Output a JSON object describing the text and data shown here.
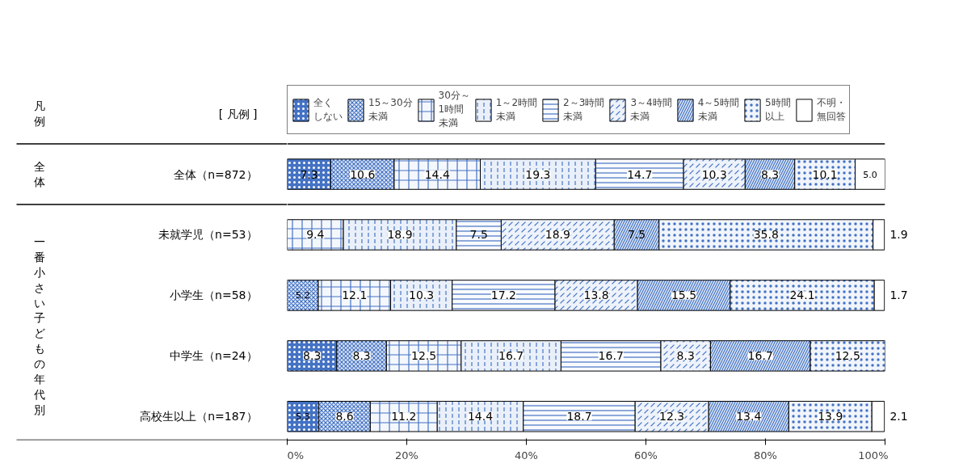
{
  "chart_data": {
    "type": "bar",
    "orientation": "horizontal",
    "stacked": true,
    "legend": "top",
    "grid": false,
    "categories": [
      "全体（n=872）",
      "未就学児（n=53）",
      "小学生（n=58）",
      "中学生（n=24）",
      "高校生以上（n=187）"
    ],
    "xlim": [
      0,
      100
    ],
    "xticks": [
      {
        "value": 0,
        "label": "0%"
      },
      {
        "value": 20,
        "label": "20%"
      },
      {
        "value": 40,
        "label": "40%"
      },
      {
        "value": 60,
        "label": "60%"
      },
      {
        "value": 80,
        "label": "80%"
      },
      {
        "value": 100,
        "label": "100%"
      }
    ],
    "series": [
      {
        "name": "全くしない",
        "color": "#4472c4",
        "values": [
          7.3,
          0,
          0,
          8.3,
          5.3
        ],
        "value_labels": [
          "7.3",
          null,
          null,
          "8.3",
          "5.3"
        ]
      },
      {
        "name": "15～30分未満",
        "color": "#e3ebf7",
        "values": [
          10.6,
          0,
          5.2,
          8.3,
          8.6
        ],
        "value_labels": [
          "10.6",
          null,
          "5.2",
          "8.3",
          "8.6"
        ]
      },
      {
        "name": "30分～1時間未満",
        "color": "#f4f7fc",
        "values": [
          14.4,
          9.4,
          12.1,
          12.5,
          11.2
        ],
        "value_labels": [
          "14.4",
          "9.4",
          "12.1",
          "12.5",
          "11.2"
        ]
      },
      {
        "name": "1～2時間未満",
        "color": "#eaf0f9",
        "values": [
          19.3,
          18.9,
          10.3,
          16.7,
          14.4
        ],
        "value_labels": [
          "19.3",
          "18.9",
          "10.3",
          "16.7",
          "14.4"
        ]
      },
      {
        "name": "2～3時間未満",
        "color": "#f8fafd",
        "values": [
          14.7,
          7.5,
          17.2,
          16.7,
          18.7
        ],
        "value_labels": [
          "14.7",
          "7.5",
          "17.2",
          "16.7",
          "18.7"
        ]
      },
      {
        "name": "3～4時間未満",
        "color": "#eef3fb",
        "values": [
          10.3,
          18.9,
          13.8,
          8.3,
          12.3
        ],
        "value_labels": [
          "10.3",
          "18.9",
          "13.8",
          "8.3",
          "12.3"
        ]
      },
      {
        "name": "4～5時間未満",
        "color": "#dce6f5",
        "values": [
          8.3,
          7.5,
          15.5,
          16.7,
          13.4
        ],
        "value_labels": [
          "8.3",
          "7.5",
          "15.5",
          "16.7",
          "13.4"
        ]
      },
      {
        "name": "5時間以上",
        "color": "#f1f5fb",
        "values": [
          10.1,
          35.8,
          24.1,
          12.5,
          13.9
        ],
        "value_labels": [
          "10.1",
          "35.8",
          "24.1",
          "12.5",
          "13.9"
        ]
      },
      {
        "name": "不明・無回答",
        "color": "#ffffff",
        "values": [
          5.0,
          1.9,
          1.7,
          0,
          2.1
        ],
        "value_labels": [
          "5.0",
          "1.9",
          "1.7",
          null,
          "2.1"
        ]
      }
    ],
    "annotations": [
      "凡例",
      "[ 凡例 ]",
      "全体",
      "一番小さい子どもの年代別"
    ]
  }
}
